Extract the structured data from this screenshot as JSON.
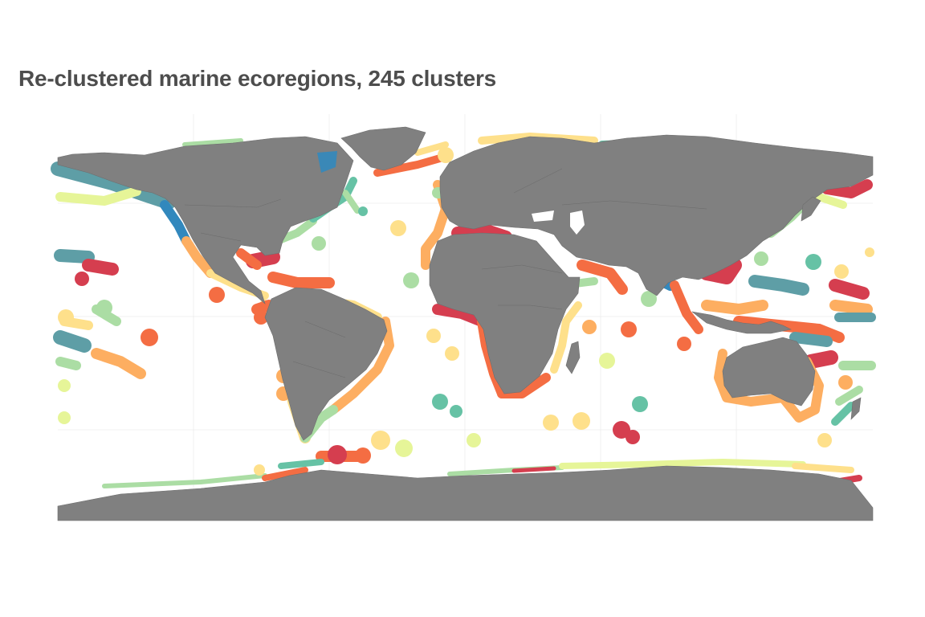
{
  "title": "Re-clustered marine ecoregions, 245 clusters",
  "map": {
    "projection": "equirectangular",
    "land_color": "#808080",
    "background_color": "#ffffff",
    "palette": [
      "#d53e4f",
      "#f46d43",
      "#fdae61",
      "#fee08b",
      "#e6f598",
      "#abdda4",
      "#66c2a5",
      "#3288bd",
      "#5e9ea6"
    ]
  }
}
